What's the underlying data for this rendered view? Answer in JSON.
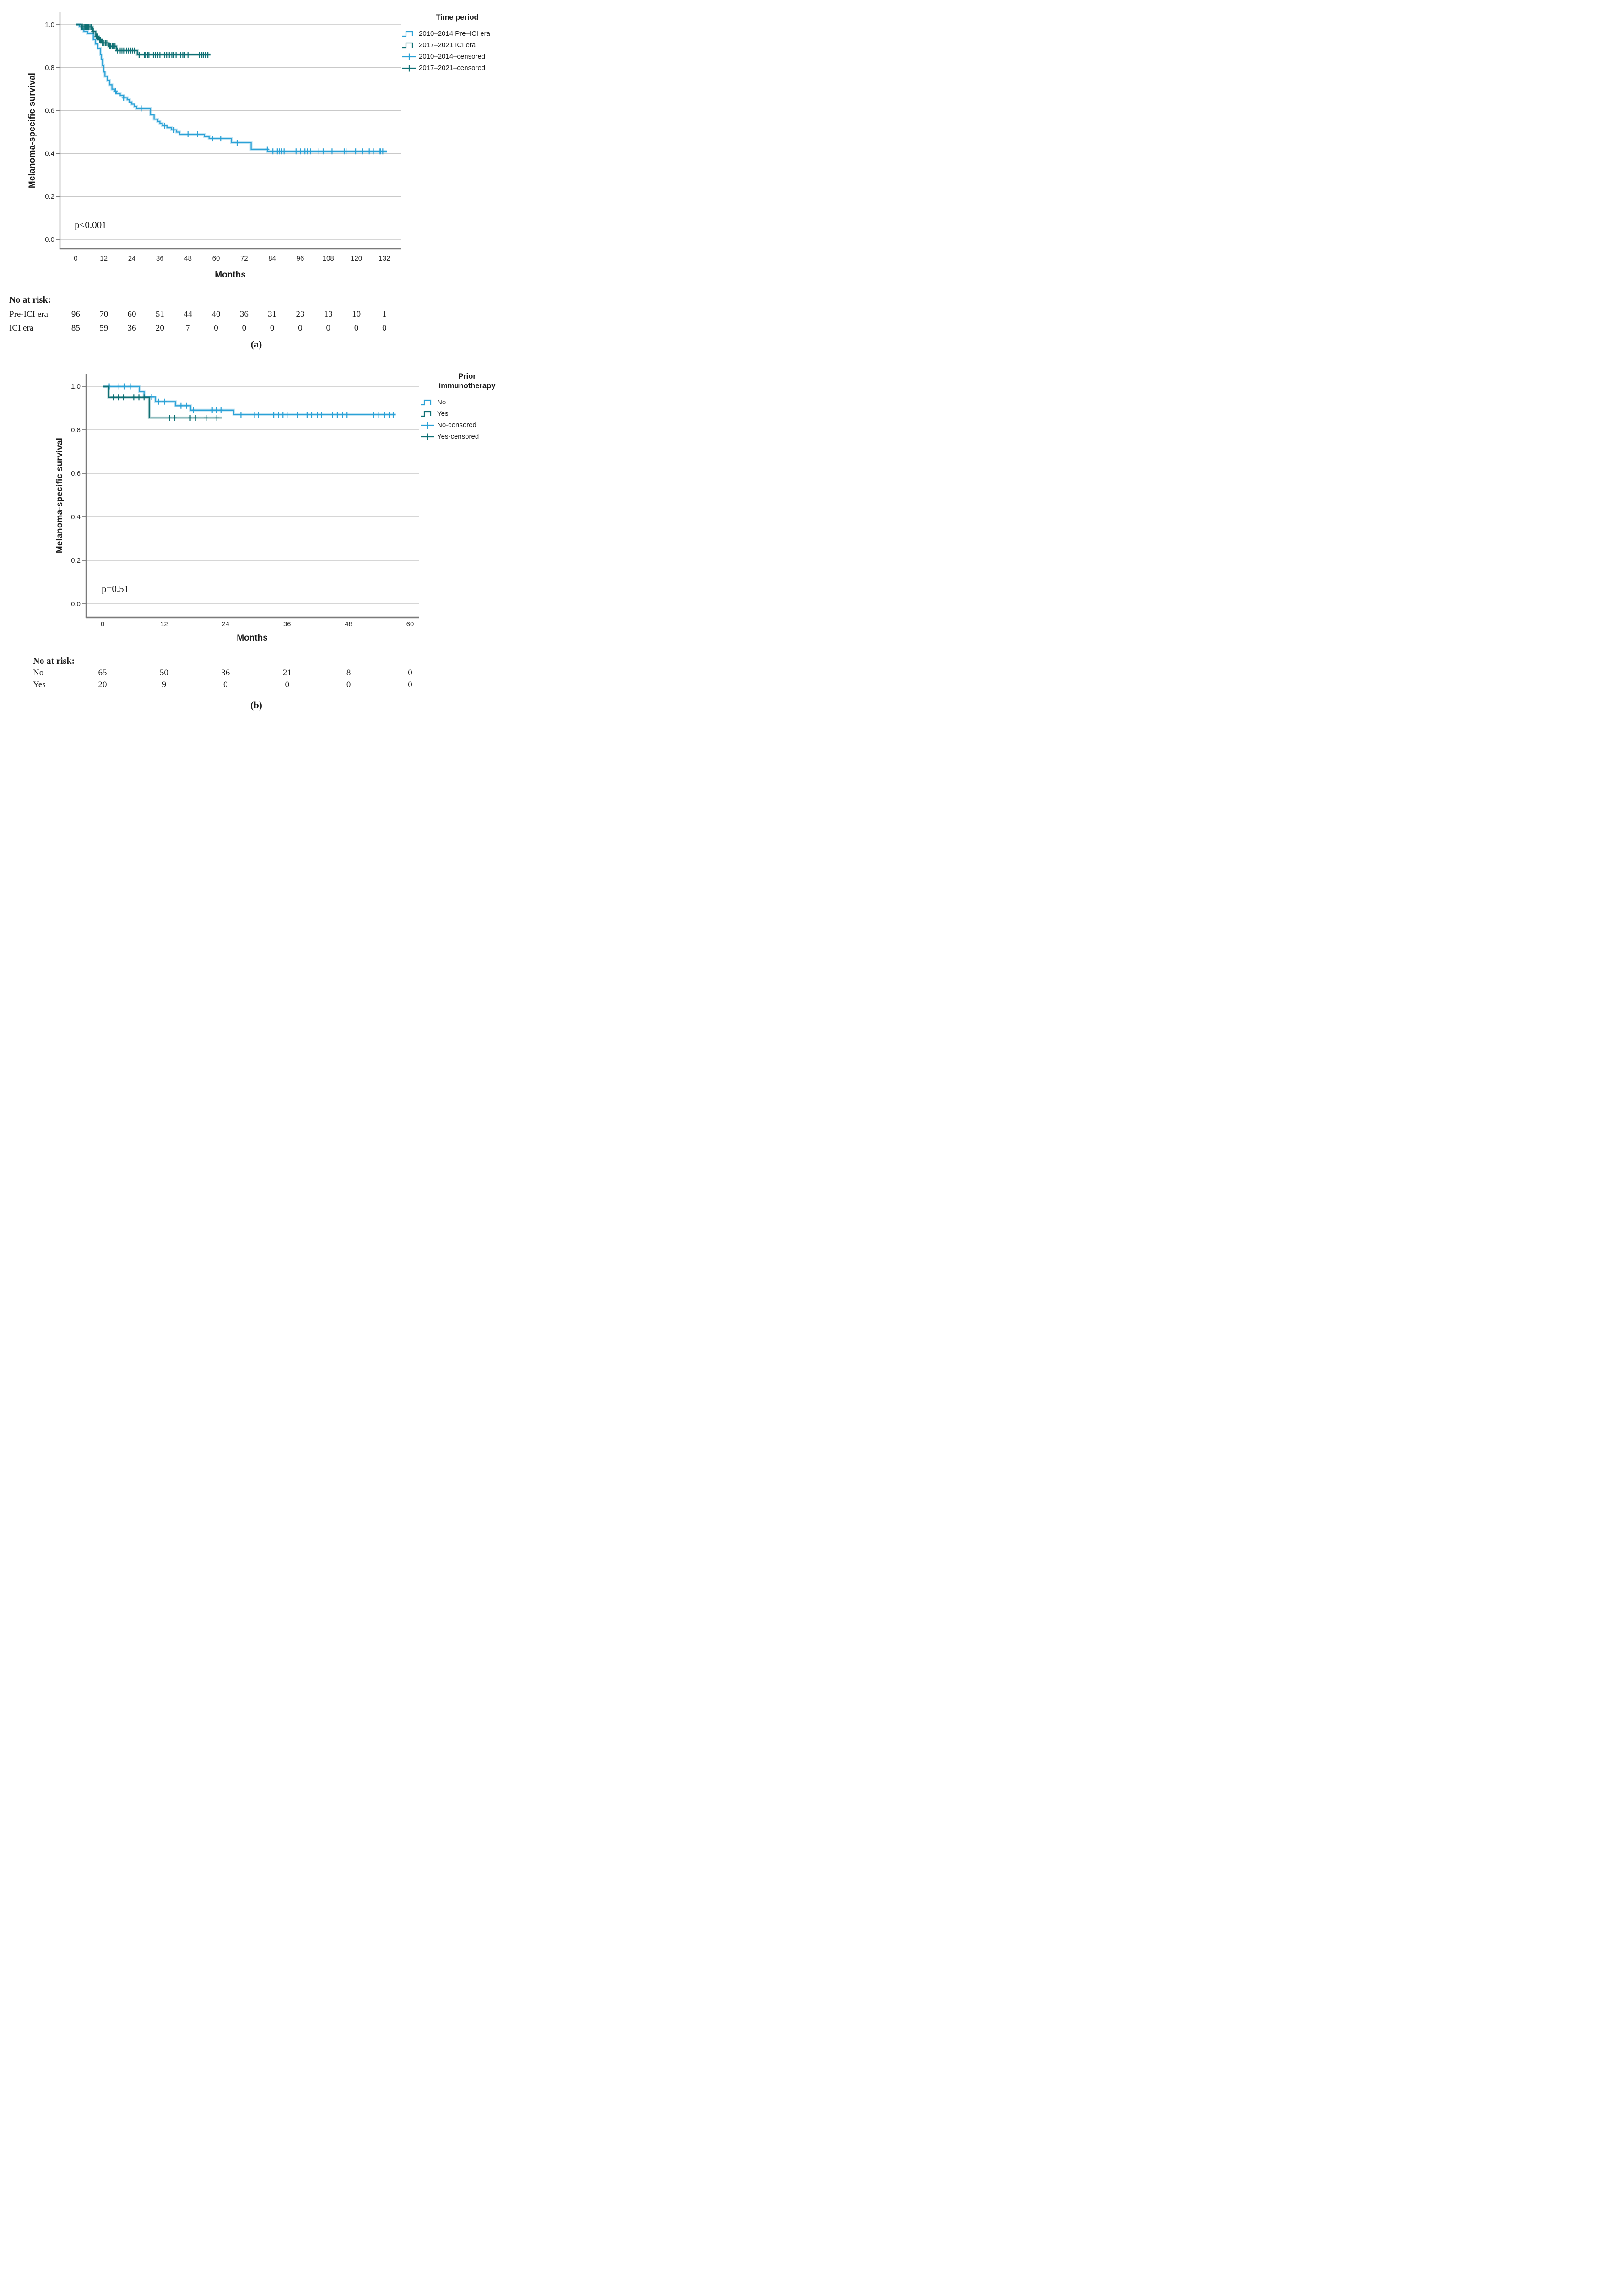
{
  "colors": {
    "pre_ici_blue": "#2aa1d6",
    "ici_teal": "#0e6f73",
    "gridline": "#c9c9c9",
    "axis": "#7a7a7a",
    "axis_shadow": "#d9d9d9",
    "text": "#1a1a1a"
  },
  "panel_a": {
    "panel_label": "(a)",
    "y_axis_label": "Melanoma-specific survival",
    "x_axis_label": "Months",
    "p_value": "p<0.001",
    "legend": {
      "title": "Time period",
      "items": [
        {
          "label": "2010–2014 Pre–ICI era",
          "glyph": "step",
          "color": "#2aa1d6"
        },
        {
          "label": "2017–2021 ICI era",
          "glyph": "step",
          "color": "#0e6f73"
        },
        {
          "label": "2010–2014–censored",
          "glyph": "cross",
          "color": "#2aa1d6"
        },
        {
          "label": "2017–2021–censored",
          "glyph": "cross",
          "color": "#0e6f73"
        }
      ]
    },
    "risk_table": {
      "header": "No at risk:",
      "rows": [
        {
          "label": "Pre-ICI era",
          "values": [
            "96",
            "70",
            "60",
            "51",
            "44",
            "40",
            "36",
            "31",
            "23",
            "13",
            "10",
            "1"
          ]
        },
        {
          "label": "ICI era",
          "values": [
            "85",
            "59",
            "36",
            "20",
            "7",
            "0",
            "0",
            "0",
            "0",
            "0",
            "0",
            "0"
          ]
        }
      ]
    },
    "chart_data": {
      "type": "km_step_line",
      "title": "",
      "xlabel": "Months",
      "ylabel": "Melanoma-specific survival",
      "x_ticks": [
        0,
        12,
        24,
        36,
        48,
        60,
        72,
        84,
        96,
        108,
        120,
        132
      ],
      "y_ticks": [
        1.0,
        0.8,
        0.6,
        0.4,
        0.2,
        0.0
      ],
      "y_tick_labels": [
        "1.0",
        "0.8",
        "0.6",
        "0.4",
        "0.2",
        "0.0"
      ],
      "xlim": [
        0,
        139
      ],
      "ylim": [
        0,
        1.05
      ],
      "grid": "horizontal-only",
      "legend_position": "right",
      "annotation": "p<0.001",
      "series": [
        {
          "name": "2010–2014 Pre–ICI era",
          "color": "#2aa1d6",
          "steps": [
            [
              0,
              1.0
            ],
            [
              1.5,
              0.99
            ],
            [
              2.5,
              0.98
            ],
            [
              3.5,
              0.97
            ],
            [
              5,
              0.96
            ],
            [
              7.5,
              0.93
            ],
            [
              8.5,
              0.91
            ],
            [
              9.5,
              0.89
            ],
            [
              10.5,
              0.86
            ],
            [
              11,
              0.84
            ],
            [
              11.5,
              0.81
            ],
            [
              12,
              0.78
            ],
            [
              12.5,
              0.76
            ],
            [
              13.5,
              0.74
            ],
            [
              14.5,
              0.72
            ],
            [
              15.5,
              0.7
            ],
            [
              16.5,
              0.69
            ],
            [
              17.5,
              0.68
            ],
            [
              19,
              0.67
            ],
            [
              20.5,
              0.66
            ],
            [
              22,
              0.65
            ],
            [
              23,
              0.64
            ],
            [
              24,
              0.63
            ],
            [
              25,
              0.62
            ],
            [
              26,
              0.61
            ],
            [
              32,
              0.58
            ],
            [
              33.5,
              0.56
            ],
            [
              35,
              0.55
            ],
            [
              36,
              0.54
            ],
            [
              37,
              0.53
            ],
            [
              39,
              0.52
            ],
            [
              41,
              0.51
            ],
            [
              43,
              0.5
            ],
            [
              44.5,
              0.49
            ],
            [
              55,
              0.48
            ],
            [
              57,
              0.47
            ],
            [
              66.5,
              0.45
            ],
            [
              75,
              0.42
            ],
            [
              82,
              0.41
            ]
          ],
          "end_month": 133,
          "censor_times": [
            17,
            20.5,
            28,
            38,
            42,
            48,
            52,
            58.5,
            62,
            69,
            81.9,
            84.3,
            86.2,
            87.1,
            88,
            89.1,
            94.2,
            96.1,
            98,
            99,
            100.4,
            104,
            105.8,
            109.6,
            114.8,
            115.6,
            119.7,
            122.5,
            125.5,
            127.4,
            129.8,
            130.4,
            131.3
          ]
        },
        {
          "name": "2017–2021 ICI era",
          "color": "#0e6f73",
          "steps": [
            [
              0,
              1.0
            ],
            [
              2.5,
              0.99
            ],
            [
              7.3,
              0.97
            ],
            [
              8.6,
              0.945
            ],
            [
              9.8,
              0.93
            ],
            [
              11.1,
              0.915
            ],
            [
              14.1,
              0.9
            ],
            [
              17.5,
              0.88
            ],
            [
              26.3,
              0.86
            ]
          ],
          "end_month": 57.6,
          "censor_times": [
            2.6,
            3.1,
            3.6,
            4.1,
            4.6,
            5.1,
            5.6,
            6.1,
            6.6,
            7.5,
            8.9,
            9.3,
            10.2,
            10.6,
            11.5,
            12.1,
            12.7,
            13.3,
            14.5,
            15,
            15.6,
            16.2,
            16.8,
            17.8,
            18.6,
            19.4,
            20.2,
            21,
            21.8,
            22.6,
            23.4,
            24.2,
            25.1,
            27.1,
            29.3,
            29.9,
            30.7,
            31.3,
            33.2,
            34.1,
            35,
            36,
            38,
            38.9,
            40,
            41.1,
            41.9,
            42.9,
            44.9,
            45.8,
            46.6,
            48,
            52.8,
            53.8,
            54.5,
            55.5,
            56.5
          ]
        }
      ]
    }
  },
  "panel_b": {
    "panel_label": "(b)",
    "y_axis_label": "Melanoma-specific survival",
    "x_axis_label": "Months",
    "p_value": "p=0.51",
    "legend": {
      "title": "Prior immunotherapy",
      "items": [
        {
          "label": "No",
          "glyph": "step",
          "color": "#2aa1d6"
        },
        {
          "label": "Yes",
          "glyph": "step",
          "color": "#0e6f73"
        },
        {
          "label": "No-censored",
          "glyph": "cross",
          "color": "#2aa1d6"
        },
        {
          "label": "Yes-censored",
          "glyph": "cross",
          "color": "#0e6f73"
        }
      ]
    },
    "risk_table": {
      "header": "No at risk:",
      "rows": [
        {
          "label": "No",
          "values": [
            "65",
            "50",
            "36",
            "21",
            "8",
            "0"
          ]
        },
        {
          "label": "Yes",
          "values": [
            "20",
            "9",
            "0",
            "0",
            "0",
            "0"
          ]
        }
      ]
    },
    "chart_data": {
      "type": "km_step_line",
      "title": "",
      "xlabel": "Months",
      "ylabel": "Melanoma-specific survival",
      "x_ticks": [
        0,
        12,
        24,
        36,
        48,
        60
      ],
      "y_ticks": [
        1.0,
        0.8,
        0.6,
        0.4,
        0.2,
        0.0
      ],
      "y_tick_labels": [
        "1.0",
        "0.8",
        "0.6",
        "0.4",
        "0.2",
        "0.0"
      ],
      "xlim": [
        0,
        62
      ],
      "ylim": [
        0,
        1.05
      ],
      "grid": "horizontal-only",
      "legend_position": "right",
      "annotation": "p=0.51",
      "series": [
        {
          "name": "No",
          "color": "#2aa1d6",
          "steps": [
            [
              0,
              1.0
            ],
            [
              7.2,
              0.976
            ],
            [
              8.1,
              0.951
            ],
            [
              10.3,
              0.93
            ],
            [
              14.2,
              0.911
            ],
            [
              17.2,
              0.891
            ],
            [
              25.6,
              0.87
            ]
          ],
          "end_month": 57.2,
          "censor_times": [
            1.3,
            3.2,
            4.2,
            5.4,
            9.6,
            10.9,
            12.1,
            15.3,
            16.4,
            17.7,
            21.4,
            22.2,
            23.1,
            27,
            29.6,
            30.4,
            33.4,
            34.3,
            35.2,
            36,
            38,
            39.9,
            40.8,
            41.9,
            42.7,
            44.9,
            45.8,
            46.8,
            47.7,
            52.8,
            53.9,
            55,
            55.9,
            56.7
          ]
        },
        {
          "name": "Yes",
          "color": "#0e6f73",
          "steps": [
            [
              0,
              1.0
            ],
            [
              1.2,
              0.95
            ],
            [
              9.1,
              0.855
            ]
          ],
          "end_month": 23.3,
          "censor_times": [
            2.1,
            3.1,
            4.1,
            6.1,
            7.1,
            8.1,
            13.1,
            14.1,
            17.1,
            18.1,
            20.2,
            22.3
          ]
        }
      ]
    }
  }
}
